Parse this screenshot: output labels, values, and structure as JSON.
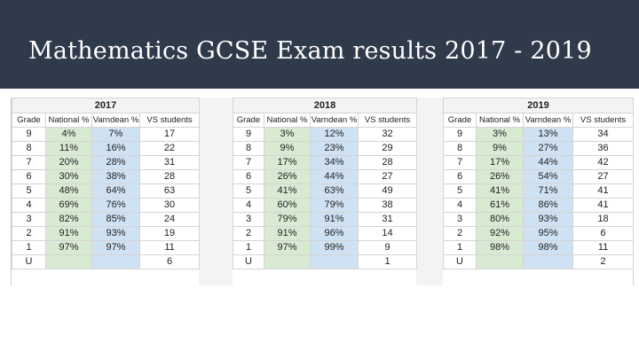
{
  "slide": {
    "title": "Mathematics GCSE Exam results 2017 - 2019"
  },
  "headers": {
    "grade": "Grade",
    "national": "National %",
    "varndean": "Varndean %",
    "vs": "VS students"
  },
  "tables": [
    {
      "year": "2017",
      "rows": [
        {
          "grade": "9",
          "national": "4%",
          "varndean": "7%",
          "vs": "17"
        },
        {
          "grade": "8",
          "national": "11%",
          "varndean": "16%",
          "vs": "22"
        },
        {
          "grade": "7",
          "national": "20%",
          "varndean": "28%",
          "vs": "31"
        },
        {
          "grade": "6",
          "national": "30%",
          "varndean": "38%",
          "vs": "28"
        },
        {
          "grade": "5",
          "national": "48%",
          "varndean": "64%",
          "vs": "63"
        },
        {
          "grade": "4",
          "national": "69%",
          "varndean": "76%",
          "vs": "30"
        },
        {
          "grade": "3",
          "national": "82%",
          "varndean": "85%",
          "vs": "24"
        },
        {
          "grade": "2",
          "national": "91%",
          "varndean": "93%",
          "vs": "19"
        },
        {
          "grade": "1",
          "national": "97%",
          "varndean": "97%",
          "vs": "11"
        },
        {
          "grade": "U",
          "national": "",
          "varndean": "",
          "vs": "6"
        }
      ]
    },
    {
      "year": "2018",
      "rows": [
        {
          "grade": "9",
          "national": "3%",
          "varndean": "12%",
          "vs": "32"
        },
        {
          "grade": "8",
          "national": "9%",
          "varndean": "23%",
          "vs": "29"
        },
        {
          "grade": "7",
          "national": "17%",
          "varndean": "34%",
          "vs": "28"
        },
        {
          "grade": "6",
          "national": "26%",
          "varndean": "44%",
          "vs": "27"
        },
        {
          "grade": "5",
          "national": "41%",
          "varndean": "63%",
          "vs": "49"
        },
        {
          "grade": "4",
          "national": "60%",
          "varndean": "79%",
          "vs": "38"
        },
        {
          "grade": "3",
          "national": "79%",
          "varndean": "91%",
          "vs": "31"
        },
        {
          "grade": "2",
          "national": "91%",
          "varndean": "96%",
          "vs": "14"
        },
        {
          "grade": "1",
          "national": "97%",
          "varndean": "99%",
          "vs": "9"
        },
        {
          "grade": "U",
          "national": "",
          "varndean": "",
          "vs": "1"
        }
      ]
    },
    {
      "year": "2019",
      "rows": [
        {
          "grade": "9",
          "national": "3%",
          "varndean": "13%",
          "vs": "34"
        },
        {
          "grade": "8",
          "national": "9%",
          "varndean": "27%",
          "vs": "36"
        },
        {
          "grade": "7",
          "national": "17%",
          "varndean": "44%",
          "vs": "42"
        },
        {
          "grade": "6",
          "national": "26%",
          "varndean": "54%",
          "vs": "27"
        },
        {
          "grade": "5",
          "national": "41%",
          "varndean": "71%",
          "vs": "41"
        },
        {
          "grade": "4",
          "national": "61%",
          "varndean": "86%",
          "vs": "41"
        },
        {
          "grade": "3",
          "national": "80%",
          "varndean": "93%",
          "vs": "18"
        },
        {
          "grade": "2",
          "national": "92%",
          "varndean": "95%",
          "vs": "6"
        },
        {
          "grade": "1",
          "national": "98%",
          "varndean": "98%",
          "vs": "11"
        },
        {
          "grade": "U",
          "national": "",
          "varndean": "",
          "vs": "2"
        }
      ]
    }
  ],
  "colors": {
    "title_bar": "#2f3a4b",
    "national_fill": "#d9ead3",
    "varndean_fill": "#cfe2f3"
  }
}
